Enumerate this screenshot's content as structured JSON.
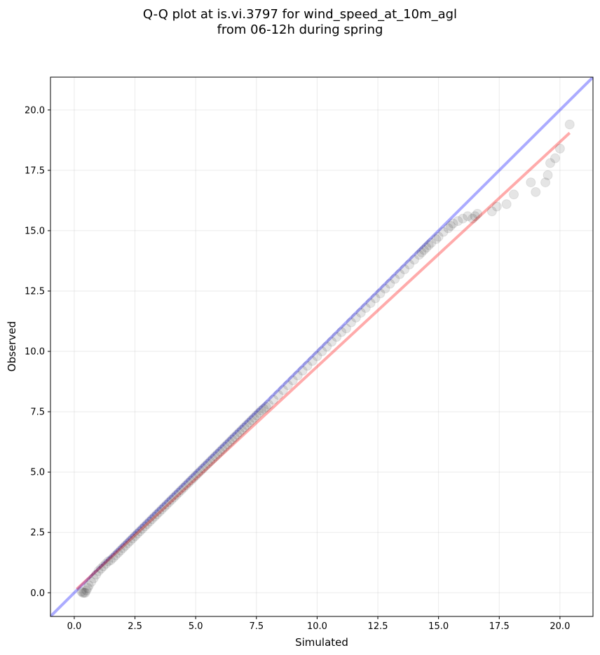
{
  "title_lines": [
    "Q-Q plot at is.vi.3797 for wind_speed_at_10m_agl",
    "from 06-12h during spring"
  ],
  "chart_data": {
    "type": "scatter",
    "title": "Q-Q plot at is.vi.3797 for wind_speed_at_10m_agl\nfrom 06-12h during spring",
    "xlabel": "Simulated",
    "ylabel": "Observed",
    "xlim": [
      -0.98,
      21.36
    ],
    "ylim": [
      -0.98,
      21.36
    ],
    "x_ticks": [
      0.0,
      2.5,
      5.0,
      7.5,
      10.0,
      12.5,
      15.0,
      17.5,
      20.0
    ],
    "x_tick_labels": [
      "0.0",
      "2.5",
      "5.0",
      "7.5",
      "10.0",
      "12.5",
      "15.0",
      "17.5",
      "20.0"
    ],
    "y_ticks": [
      0.0,
      2.5,
      5.0,
      7.5,
      10.0,
      12.5,
      15.0,
      17.5,
      20.0
    ],
    "y_tick_labels": [
      "0.0",
      "2.5",
      "5.0",
      "7.5",
      "10.0",
      "12.5",
      "15.0",
      "17.5",
      "20.0"
    ],
    "grid": true,
    "legend": "none",
    "colors": {
      "points": "#000000",
      "identity_line": "#0000ff",
      "fit_line": "#ff0000"
    },
    "reference_lines": [
      {
        "name": "1:1",
        "color": "#0000ff",
        "x": [
          -0.98,
          21.36
        ],
        "y": [
          -0.98,
          21.36
        ]
      },
      {
        "name": "fit",
        "color": "#ff0000",
        "x": [
          0.1,
          20.4
        ],
        "y": [
          0.15,
          19.05
        ]
      }
    ],
    "series": [
      {
        "x": [
          0.3,
          0.35,
          0.4,
          0.45,
          0.5,
          0.55,
          0.6,
          0.7,
          0.8,
          0.9,
          1.0,
          1.1,
          1.2,
          1.3,
          1.4,
          1.5,
          1.6,
          1.7,
          1.8,
          1.9,
          2.0,
          2.1,
          2.2,
          2.3,
          2.4,
          2.5,
          2.6,
          2.7,
          2.8,
          2.9,
          3.0,
          3.1,
          3.2,
          3.3,
          3.4,
          3.5,
          3.6,
          3.7,
          3.8,
          3.9,
          4.0,
          4.1,
          4.2,
          4.3,
          4.4,
          4.5,
          4.6,
          4.7,
          4.8,
          4.9,
          5.0,
          5.1,
          5.2,
          5.3,
          5.4,
          5.5,
          5.6,
          5.7,
          5.8,
          5.9,
          6.0,
          6.1,
          6.2,
          6.3,
          6.4,
          6.5,
          6.6,
          6.7,
          6.8,
          6.9,
          7.0,
          7.1,
          7.2,
          7.3,
          7.4,
          7.5,
          7.6,
          7.7,
          7.8,
          7.9,
          8.0,
          8.2,
          8.4,
          8.6,
          8.8,
          9.0,
          9.2,
          9.4,
          9.6,
          9.8,
          10.0,
          10.2,
          10.4,
          10.6,
          10.8,
          11.0,
          11.2,
          11.4,
          11.6,
          11.8,
          12.0,
          12.2,
          12.4,
          12.6,
          12.8,
          13.0,
          13.2,
          13.4,
          13.6,
          13.8,
          14.0,
          14.2,
          14.3,
          14.4,
          14.5,
          14.6,
          14.7,
          14.9,
          15.0,
          15.2,
          15.4,
          15.5,
          15.6,
          15.8,
          16.0,
          16.2,
          16.4,
          16.5,
          16.6,
          17.2,
          17.4,
          17.8,
          18.1,
          18.8,
          19.0,
          19.4,
          19.5,
          19.6,
          19.8,
          20.0,
          20.4
        ],
        "y": [
          0.05,
          0.0,
          0.0,
          0.0,
          0.1,
          0.2,
          0.3,
          0.45,
          0.6,
          0.75,
          0.9,
          1.0,
          1.1,
          1.2,
          1.3,
          1.35,
          1.45,
          1.55,
          1.65,
          1.75,
          1.85,
          1.95,
          2.05,
          2.15,
          2.25,
          2.35,
          2.45,
          2.55,
          2.65,
          2.75,
          2.85,
          2.95,
          3.05,
          3.15,
          3.25,
          3.35,
          3.45,
          3.55,
          3.65,
          3.75,
          3.85,
          3.95,
          4.05,
          4.15,
          4.25,
          4.35,
          4.45,
          4.55,
          4.65,
          4.75,
          4.85,
          4.95,
          5.05,
          5.15,
          5.25,
          5.35,
          5.45,
          5.55,
          5.65,
          5.75,
          5.85,
          5.95,
          6.05,
          6.15,
          6.25,
          6.35,
          6.45,
          6.55,
          6.65,
          6.75,
          6.85,
          6.95,
          7.05,
          7.15,
          7.25,
          7.35,
          7.45,
          7.55,
          7.62,
          7.7,
          7.8,
          8.0,
          8.2,
          8.4,
          8.6,
          8.8,
          9.0,
          9.2,
          9.4,
          9.6,
          9.8,
          10.0,
          10.2,
          10.4,
          10.6,
          10.8,
          10.95,
          11.2,
          11.4,
          11.6,
          11.8,
          12.0,
          12.2,
          12.4,
          12.6,
          12.8,
          13.0,
          13.2,
          13.4,
          13.6,
          13.8,
          14.0,
          14.1,
          14.2,
          14.3,
          14.4,
          14.5,
          14.65,
          14.75,
          14.95,
          15.1,
          15.2,
          15.3,
          15.4,
          15.5,
          15.6,
          15.5,
          15.6,
          15.7,
          15.8,
          16.0,
          16.1,
          16.5,
          17.0,
          16.6,
          17.0,
          17.3,
          17.8,
          18.0,
          18.4,
          19.4
        ]
      }
    ]
  }
}
